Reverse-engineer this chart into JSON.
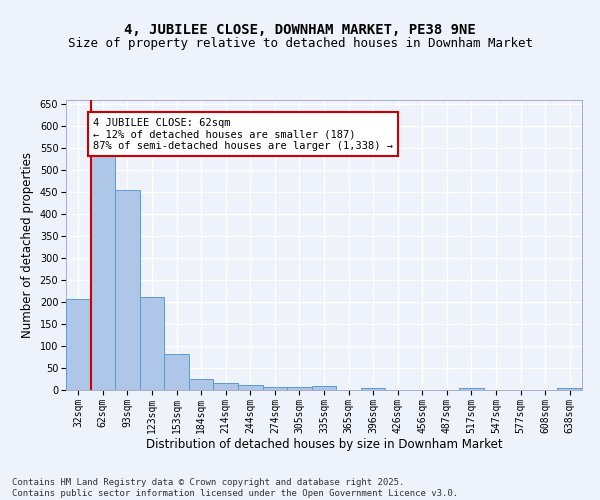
{
  "title": "4, JUBILEE CLOSE, DOWNHAM MARKET, PE38 9NE",
  "subtitle": "Size of property relative to detached houses in Downham Market",
  "xlabel": "Distribution of detached houses by size in Downham Market",
  "ylabel": "Number of detached properties",
  "categories": [
    "32sqm",
    "62sqm",
    "93sqm",
    "123sqm",
    "153sqm",
    "184sqm",
    "214sqm",
    "244sqm",
    "274sqm",
    "305sqm",
    "335sqm",
    "365sqm",
    "396sqm",
    "426sqm",
    "456sqm",
    "487sqm",
    "517sqm",
    "547sqm",
    "577sqm",
    "608sqm",
    "638sqm"
  ],
  "values": [
    208,
    535,
    455,
    212,
    81,
    26,
    15,
    11,
    6,
    6,
    8,
    0,
    5,
    0,
    0,
    0,
    4,
    0,
    0,
    0,
    5
  ],
  "bar_color": "#aec6e8",
  "bar_edge_color": "#5b9bd5",
  "vline_color": "#cc0000",
  "annotation_box_text": "4 JUBILEE CLOSE: 62sqm\n← 12% of detached houses are smaller (187)\n87% of semi-detached houses are larger (1,338) →",
  "annotation_box_color": "#cc0000",
  "annotation_box_facecolor": "white",
  "ylim": [
    0,
    660
  ],
  "yticks": [
    0,
    50,
    100,
    150,
    200,
    250,
    300,
    350,
    400,
    450,
    500,
    550,
    600,
    650
  ],
  "background_color": "#eef2fa",
  "grid_color": "white",
  "footer_line1": "Contains HM Land Registry data © Crown copyright and database right 2025.",
  "footer_line2": "Contains public sector information licensed under the Open Government Licence v3.0.",
  "title_fontsize": 10,
  "subtitle_fontsize": 9,
  "axis_label_fontsize": 8.5,
  "tick_fontsize": 7,
  "footer_fontsize": 6.5
}
